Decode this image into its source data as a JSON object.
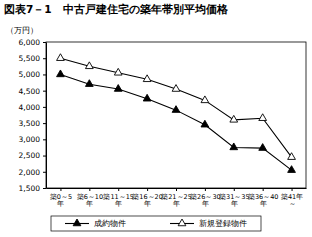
{
  "chart_data": {
    "type": "line",
    "title": "図表7－1　中古戸建住宅の築年帯別平均価格",
    "y_label": "（万円）",
    "categories": [
      "築0～5年",
      "築6～10年",
      "築11～15年",
      "築16～20年",
      "築21～25年",
      "築26～30年",
      "築31～35年",
      "築36～40年",
      "築41年～"
    ],
    "series": [
      {
        "name": "成約物件",
        "color": "#000000",
        "marker": "triangle",
        "line_style": "solid",
        "values": [
          5000,
          4700,
          4550,
          4250,
          3900,
          3450,
          2750,
          2730,
          2050
        ]
      },
      {
        "name": "新規登録物件",
        "color": "#000000",
        "marker": "triangle-open",
        "line_style": "solid",
        "values": [
          5500,
          5250,
          5050,
          4850,
          4550,
          4200,
          3600,
          3650,
          2450
        ]
      }
    ],
    "ylim": [
      1500,
      6000
    ],
    "yticks": [
      {
        "value": 1500,
        "label": "1,500"
      },
      {
        "value": 2000,
        "label": "2,000"
      },
      {
        "value": 2500,
        "label": "2,500"
      },
      {
        "value": 3000,
        "label": "3,000"
      },
      {
        "value": 3500,
        "label": "3,500"
      },
      {
        "value": 4000,
        "label": "4,000"
      },
      {
        "value": 4500,
        "label": "4,500"
      },
      {
        "value": 5000,
        "label": "5,000"
      },
      {
        "value": 5500,
        "label": "5,500"
      },
      {
        "value": 6000,
        "label": "6,000"
      }
    ],
    "grid": false,
    "legend": "bottom"
  }
}
